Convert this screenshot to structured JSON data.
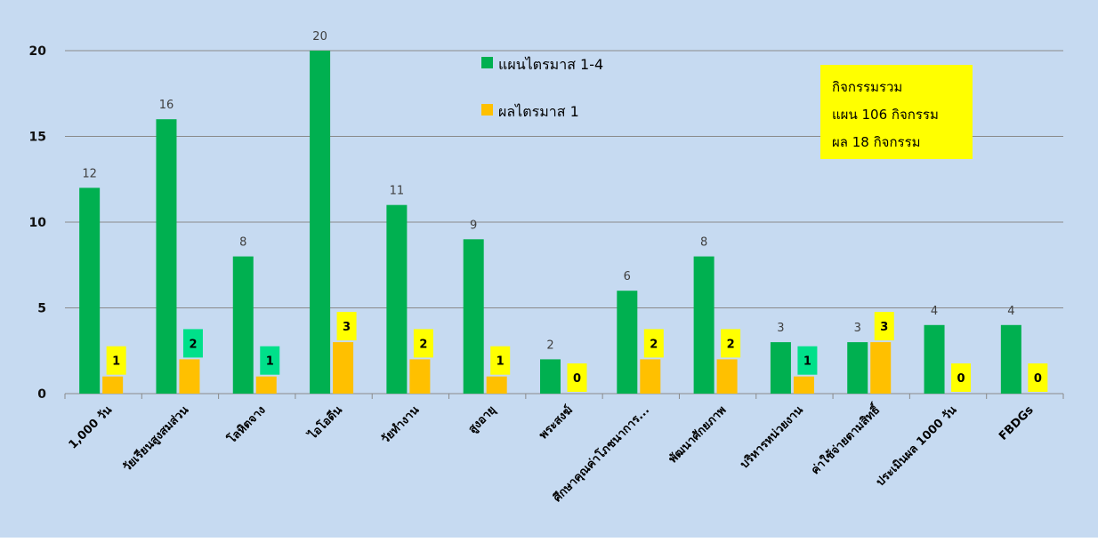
{
  "colors": {
    "background": "#c6daf1",
    "plan": "#00b050",
    "result": "#ffc000",
    "label_box_yellow": "#ffff00",
    "label_box_green": "#00e08a",
    "grid": "#8a8a8a",
    "note_box": "#ffff00"
  },
  "chart_data": {
    "type": "bar",
    "categories": [
      "1,000 วัน",
      "วัยเรียนสูงสมส่วน",
      "โลหิตจาง",
      "ไอโอดีน",
      "วัยทำงาน",
      "สูงอายุ",
      "พระสงฆ์",
      "ศึกษาคุณค่าโภชนาการ...",
      "พัฒนาศักยภาพ",
      "บริหารหน่วยงาน",
      "ค่าใช้จ่ายตามสิทธิ์",
      "ประเมินผล 1000 วัน",
      "FBDGs"
    ],
    "series": [
      {
        "name": "แผนไตรมาส 1-4",
        "values": [
          12,
          16,
          8,
          20,
          11,
          9,
          2,
          6,
          8,
          3,
          3,
          4,
          4
        ]
      },
      {
        "name": "ผลไตรมาส 1",
        "values": [
          1,
          2,
          1,
          3,
          2,
          1,
          0,
          2,
          2,
          1,
          3,
          0,
          0
        ]
      }
    ],
    "result_label_box": [
      "yellow",
      "green",
      "green",
      "yellow",
      "yellow",
      "yellow",
      "yellow",
      "yellow",
      "yellow",
      "green",
      "yellow",
      "yellow",
      "yellow"
    ],
    "yticks": [
      0,
      5,
      10,
      15,
      20
    ],
    "ylim": [
      0,
      20
    ],
    "grid": true,
    "legend_position": "top-center",
    "title": "",
    "xlabel": "",
    "ylabel": ""
  },
  "note": {
    "lines": [
      "กิจกรรมรวม",
      "แผน 106 กิจกรรม",
      "ผล 18 กิจกรรม"
    ]
  }
}
